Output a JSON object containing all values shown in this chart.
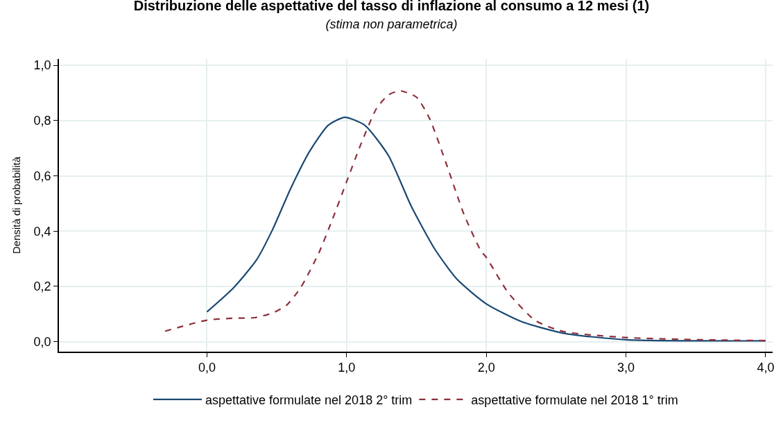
{
  "chart_data": {
    "type": "line",
    "title": "Distribuzione delle aspettative del tasso di inflazione al consumo a 12 mesi (1)",
    "subtitle": "(stima non parametrica)",
    "ylabel": "Densità di probabilità",
    "xlim": [
      -1.06,
      4.05
    ],
    "ylim": [
      -0.036,
      1.023
    ],
    "xticks": [
      {
        "value": 0,
        "label": "0,0"
      },
      {
        "value": 1,
        "label": "1,0"
      },
      {
        "value": 2,
        "label": "2,0"
      },
      {
        "value": 3,
        "label": "3,0"
      },
      {
        "value": 4,
        "label": "4,0"
      }
    ],
    "yticks": [
      {
        "value": 0,
        "label": "0,0"
      },
      {
        "value": 0.2,
        "label": "0,2"
      },
      {
        "value": 0.4,
        "label": "0,4"
      },
      {
        "value": 0.6,
        "label": "0,6"
      },
      {
        "value": 0.8,
        "label": "0,8"
      },
      {
        "value": 1.0,
        "label": "1,0"
      }
    ],
    "grid": true,
    "legend": "bottom",
    "marker": "none",
    "series": [
      {
        "name": "aspettative formulate nel 2018 2° trim",
        "color": "#1a4872",
        "line_style": "solid",
        "x": [
          0,
          0.19,
          0.355,
          0.47,
          0.6,
          0.735,
          0.868,
          0.987,
          1.13,
          1.3,
          1.46,
          1.63,
          1.79,
          2.0,
          2.25,
          2.55,
          3.0,
          4.0
        ],
        "values": [
          0.108,
          0.195,
          0.296,
          0.406,
          0.555,
          0.689,
          0.783,
          0.812,
          0.783,
          0.673,
          0.493,
          0.336,
          0.226,
          0.137,
          0.073,
          0.031,
          0.007,
          0.003
        ]
      },
      {
        "name": "aspettative formulate nel 2018 1° trim",
        "color": "#8e2f3a",
        "line_style": "dashed",
        "x": [
          -0.3,
          0,
          0.19,
          0.34,
          0.47,
          0.57,
          0.67,
          0.8,
          0.9,
          1.0,
          1.1,
          1.215,
          1.3,
          1.38,
          1.5,
          1.595,
          1.71,
          1.84,
          1.96,
          2.0,
          2.16,
          2.35,
          2.55,
          3.0,
          3.53,
          4.0
        ],
        "values": [
          0.038,
          0.078,
          0.085,
          0.087,
          0.104,
          0.132,
          0.195,
          0.32,
          0.445,
          0.579,
          0.712,
          0.845,
          0.893,
          0.908,
          0.885,
          0.806,
          0.649,
          0.461,
          0.33,
          0.305,
          0.175,
          0.077,
          0.037,
          0.015,
          0.007,
          0.004
        ]
      }
    ]
  }
}
